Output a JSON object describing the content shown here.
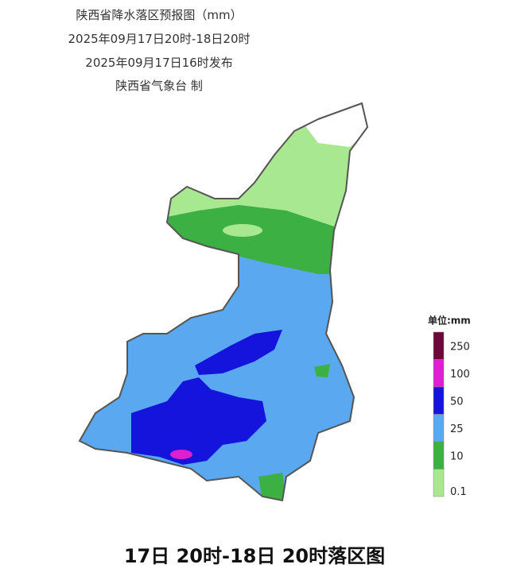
{
  "header": {
    "title": "陕西省降水落区预报图（mm）",
    "period": "2025年09月17日20时-18日20时",
    "issued": "2025年09月17日16时发布",
    "issuer": "陕西省气象台 制"
  },
  "legend": {
    "title": "单位:mm",
    "items": [
      {
        "label": "250",
        "color": "#6b0a3a"
      },
      {
        "label": "100",
        "color": "#e020d0"
      },
      {
        "label": "50",
        "color": "#1414dc"
      },
      {
        "label": "25",
        "color": "#5aa8f0"
      },
      {
        "label": "10",
        "color": "#3cb043"
      },
      {
        "label": "0.1",
        "color": "#a8e890"
      }
    ]
  },
  "caption": "17日 20时-18日 20时落区图"
}
